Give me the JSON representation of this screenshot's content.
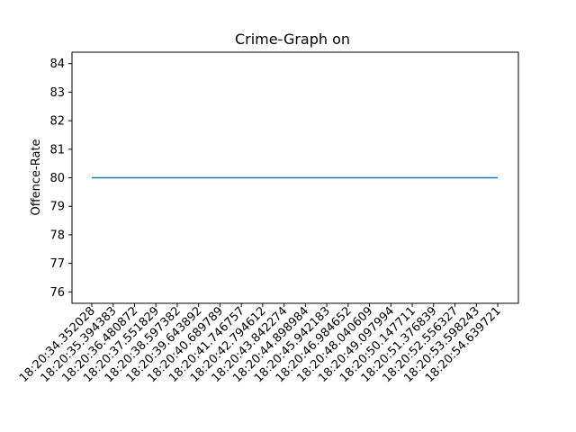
{
  "chart_data": {
    "type": "line",
    "title": "Crime-Graph on",
    "xlabel": "",
    "ylabel": "Offence-Rate",
    "categories": [
      "18:20:34.352028",
      "18:20:35.394383",
      "18:20:36.480872",
      "18:20:37.551829",
      "18:20:38.597382",
      "18:20:39.643892",
      "18:20:40.689789",
      "18:20:41.746757",
      "18:20:42.794612",
      "18:20:43.842274",
      "18:20:44.898984",
      "18:20:45.942183",
      "18:20:46.984652",
      "18:20:48.040609",
      "18:20:49.097994",
      "18:20:50.147711",
      "18:20:51.376839",
      "18:20:52.556327",
      "18:20:53.598243",
      "18:20:54.639721"
    ],
    "series": [
      {
        "values": [
          80,
          80,
          80,
          80,
          80,
          80,
          80,
          80,
          80,
          80,
          80,
          80,
          80,
          80,
          80,
          80,
          80,
          80,
          80,
          80
        ],
        "color": "#1f77b4"
      }
    ],
    "ylim": [
      75.6,
      84.4
    ],
    "yticks": [
      76,
      77,
      78,
      79,
      80,
      81,
      82,
      83,
      84
    ],
    "grid": false,
    "legend": "none"
  }
}
